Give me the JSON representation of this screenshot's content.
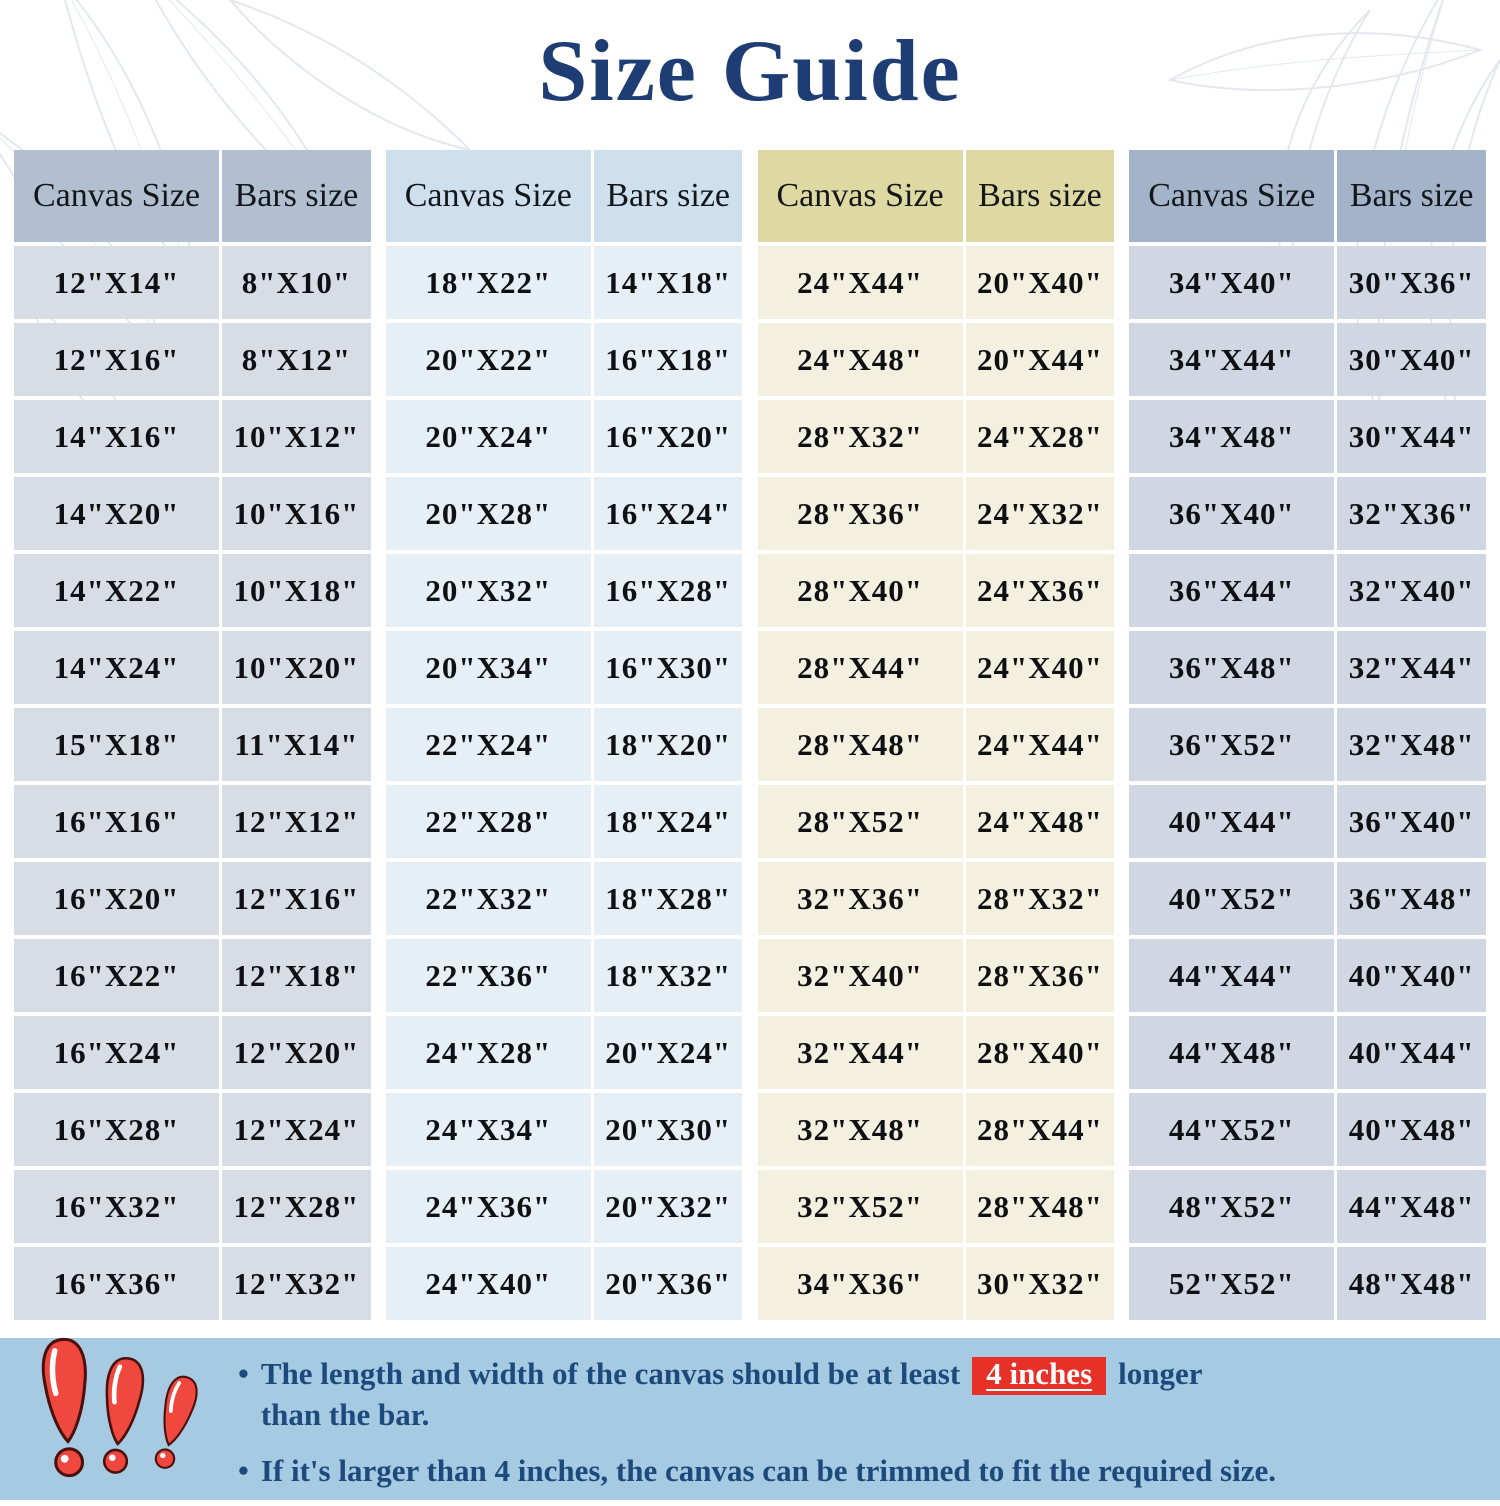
{
  "title": "Size Guide",
  "colors": {
    "title_color": "#1e3d75",
    "note_text": "#1d4a7c",
    "band_bg": "#a5cae2",
    "highlight_bg": "#e73128",
    "highlight_text": "#ffffff",
    "icon_red": "#f0483f"
  },
  "groups": [
    {
      "header": {
        "canvas": "Canvas Size",
        "bars": "Bars size"
      },
      "colors": {
        "header_bg": "#b2bfd1",
        "row_bg": "#d7dce5"
      },
      "rows": [
        [
          "12\"X14\"",
          "8\"X10\""
        ],
        [
          "12\"X16\"",
          "8\"X12\""
        ],
        [
          "14\"X16\"",
          "10\"X12\""
        ],
        [
          "14\"X20\"",
          "10\"X16\""
        ],
        [
          "14\"X22\"",
          "10\"X18\""
        ],
        [
          "14\"X24\"",
          "10\"X20\""
        ],
        [
          "15\"X18\"",
          "11\"X14\""
        ],
        [
          "16\"X16\"",
          "12\"X12\""
        ],
        [
          "16\"X20\"",
          "12\"X16\""
        ],
        [
          "16\"X22\"",
          "12\"X18\""
        ],
        [
          "16\"X24\"",
          "12\"X20\""
        ],
        [
          "16\"X28\"",
          "12\"X24\""
        ],
        [
          "16\"X32\"",
          "12\"X28\""
        ],
        [
          "16\"X36\"",
          "12\"X32\""
        ]
      ]
    },
    {
      "header": {
        "canvas": "Canvas Size",
        "bars": "Bars size"
      },
      "colors": {
        "header_bg": "#cee0ee",
        "row_bg": "#e7eff6"
      },
      "rows": [
        [
          "18\"X22\"",
          "14\"X18\""
        ],
        [
          "20\"X22\"",
          "16\"X18\""
        ],
        [
          "20\"X24\"",
          "16\"X20\""
        ],
        [
          "20\"X28\"",
          "16\"X24\""
        ],
        [
          "20\"X32\"",
          "16\"X28\""
        ],
        [
          "20\"X34\"",
          "16\"X30\""
        ],
        [
          "22\"X24\"",
          "18\"X20\""
        ],
        [
          "22\"X28\"",
          "18\"X24\""
        ],
        [
          "22\"X32\"",
          "18\"X28\""
        ],
        [
          "22\"X36\"",
          "18\"X32\""
        ],
        [
          "24\"X28\"",
          "20\"X24\""
        ],
        [
          "24\"X34\"",
          "20\"X30\""
        ],
        [
          "24\"X36\"",
          "20\"X32\""
        ],
        [
          "24\"X40\"",
          "20\"X36\""
        ]
      ]
    },
    {
      "header": {
        "canvas": "Canvas Size",
        "bars": "Bars size"
      },
      "colors": {
        "header_bg": "#ded9a2",
        "row_bg": "#f3f0e0"
      },
      "rows": [
        [
          "24\"X44\"",
          "20\"X40\""
        ],
        [
          "24\"X48\"",
          "20\"X44\""
        ],
        [
          "28\"X32\"",
          "24\"X28\""
        ],
        [
          "28\"X36\"",
          "24\"X32\""
        ],
        [
          "28\"X40\"",
          "24\"X36\""
        ],
        [
          "28\"X44\"",
          "24\"X40\""
        ],
        [
          "28\"X48\"",
          "24\"X44\""
        ],
        [
          "28\"X52\"",
          "24\"X48\""
        ],
        [
          "32\"X36\"",
          "28\"X32\""
        ],
        [
          "32\"X40\"",
          "28\"X36\""
        ],
        [
          "32\"X44\"",
          "28\"X40\""
        ],
        [
          "32\"X48\"",
          "28\"X44\""
        ],
        [
          "32\"X52\"",
          "28\"X48\""
        ],
        [
          "34\"X36\"",
          "30\"X32\""
        ]
      ]
    },
    {
      "header": {
        "canvas": "Canvas Size",
        "bars": "Bars size"
      },
      "colors": {
        "header_bg": "#a3b4ca",
        "row_bg": "#d0d7e2"
      },
      "rows": [
        [
          "34\"X40\"",
          "30\"X36\""
        ],
        [
          "34\"X44\"",
          "30\"X40\""
        ],
        [
          "34\"X48\"",
          "30\"X44\""
        ],
        [
          "36\"X40\"",
          "32\"X36\""
        ],
        [
          "36\"X44\"",
          "32\"X40\""
        ],
        [
          "36\"X48\"",
          "32\"X44\""
        ],
        [
          "36\"X52\"",
          "32\"X48\""
        ],
        [
          "40\"X44\"",
          "36\"X40\""
        ],
        [
          "40\"X52\"",
          "36\"X48\""
        ],
        [
          "44\"X44\"",
          "40\"X40\""
        ],
        [
          "44\"X48\"",
          "40\"X44\""
        ],
        [
          "44\"X52\"",
          "40\"X48\""
        ],
        [
          "48\"X52\"",
          "44\"X48\""
        ],
        [
          "52\"X52\"",
          "48\"X48\""
        ]
      ]
    }
  ],
  "notes": {
    "bullet": "•",
    "note1": {
      "line1_pre": "The length and width of the canvas should be at least",
      "highlight": "4 inches",
      "line1_post": "longer",
      "line2": "than the bar."
    },
    "note2": "If it's larger than 4 inches, the canvas can be trimmed to fit the required size."
  }
}
